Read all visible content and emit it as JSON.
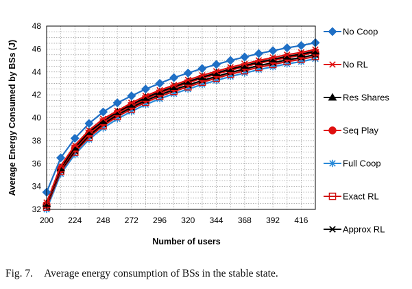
{
  "caption": {
    "label": "Fig. 7.",
    "text": "Average energy consumption of BSs in the stable state."
  },
  "chart_data": {
    "type": "line",
    "title": "",
    "xlabel": "Number of users",
    "ylabel": "Average Energy Consumed by BSs (J)",
    "xlim": [
      200,
      428
    ],
    "ylim": [
      32,
      48
    ],
    "xticks": [
      200,
      224,
      248,
      272,
      296,
      320,
      344,
      368,
      392,
      416
    ],
    "yticks": [
      32,
      34,
      36,
      38,
      40,
      42,
      44,
      46,
      48
    ],
    "grid": "dotted",
    "legend_position": "right",
    "x": [
      200,
      212,
      224,
      236,
      248,
      260,
      272,
      284,
      296,
      308,
      320,
      332,
      344,
      356,
      368,
      380,
      392,
      404,
      416,
      428
    ],
    "series": [
      {
        "name": "No Coop",
        "color": "#1f6fc5",
        "marker": "diamond",
        "values": [
          33.5,
          36.5,
          38.2,
          39.5,
          40.5,
          41.3,
          41.9,
          42.5,
          43.0,
          43.5,
          43.9,
          44.3,
          44.65,
          45.0,
          45.3,
          45.6,
          45.85,
          46.1,
          46.3,
          46.55
        ]
      },
      {
        "name": "No RL",
        "color": "#e01010",
        "marker": "star",
        "values": [
          32.6,
          35.8,
          37.6,
          38.9,
          39.9,
          40.6,
          41.3,
          41.9,
          42.4,
          42.85,
          43.3,
          43.7,
          44.05,
          44.4,
          44.7,
          45.0,
          45.25,
          45.5,
          45.7,
          45.95
        ]
      },
      {
        "name": "Res Shares",
        "color": "#000000",
        "marker": "triangle",
        "values": [
          32.5,
          35.6,
          37.4,
          38.75,
          39.7,
          40.5,
          41.15,
          41.75,
          42.25,
          42.7,
          43.15,
          43.55,
          43.9,
          44.25,
          44.55,
          44.85,
          45.1,
          45.35,
          45.55,
          45.8
        ]
      },
      {
        "name": "Seq Play",
        "color": "#e01010",
        "marker": "circle",
        "values": [
          32.4,
          35.5,
          37.3,
          38.6,
          39.6,
          40.4,
          41.05,
          41.65,
          42.15,
          42.6,
          43.05,
          43.45,
          43.8,
          44.15,
          44.45,
          44.75,
          45.0,
          45.25,
          45.45,
          45.7
        ]
      },
      {
        "name": "Full Coop",
        "color": "#2a8ad8",
        "marker": "asterisk",
        "values": [
          32.0,
          35.1,
          36.8,
          38.1,
          39.1,
          39.9,
          40.55,
          41.15,
          41.65,
          42.1,
          42.5,
          42.9,
          43.25,
          43.6,
          43.9,
          44.2,
          44.45,
          44.7,
          44.9,
          45.15
        ]
      },
      {
        "name": "Exact RL",
        "color": "#d01010",
        "marker": "square",
        "values": [
          32.2,
          35.3,
          37.0,
          38.3,
          39.3,
          40.1,
          40.75,
          41.35,
          41.85,
          42.3,
          42.7,
          43.1,
          43.45,
          43.8,
          44.1,
          44.4,
          44.65,
          44.9,
          45.1,
          45.35
        ]
      },
      {
        "name": "Approx RL",
        "color": "#000000",
        "marker": "x",
        "values": [
          32.3,
          35.4,
          37.1,
          38.45,
          39.45,
          40.25,
          40.9,
          41.5,
          42.0,
          42.45,
          42.85,
          43.25,
          43.6,
          43.95,
          44.25,
          44.55,
          44.8,
          45.05,
          45.25,
          45.5
        ]
      }
    ]
  }
}
